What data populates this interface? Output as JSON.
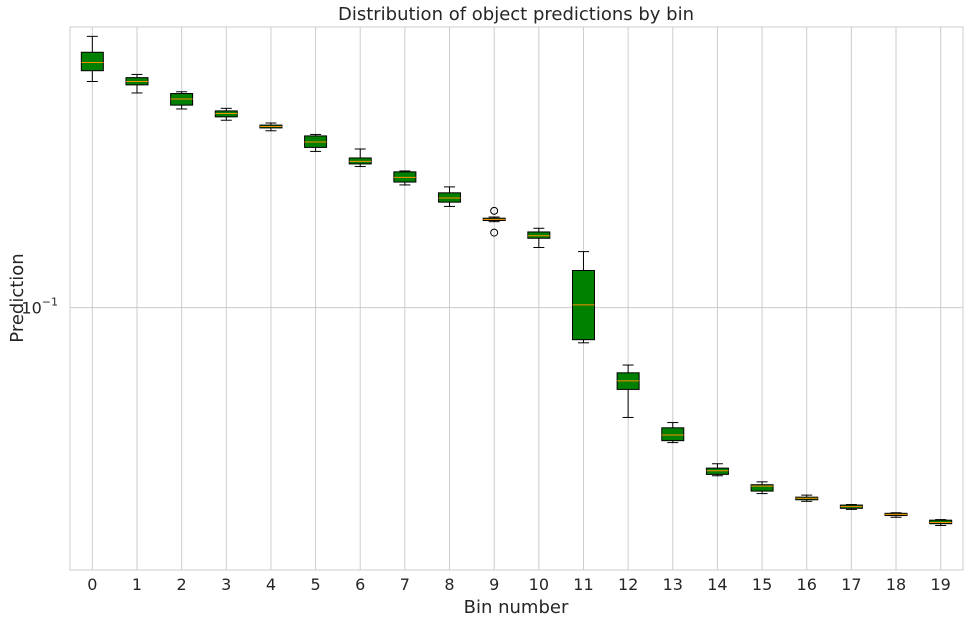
{
  "chart_data": {
    "type": "box",
    "title": "Distribution of object predictions by bin",
    "xlabel": "Bin number",
    "ylabel": "Prediction",
    "yscale": "log",
    "ylim": [
      0.0245,
      0.45
    ],
    "y_ticks": [
      {
        "value": 0.1,
        "base": "10",
        "exp": "−1"
      }
    ],
    "grid": true,
    "box_color": "#008000",
    "median_color": "#ff8c00",
    "categories": [
      "0",
      "1",
      "2",
      "3",
      "4",
      "5",
      "6",
      "7",
      "8",
      "9",
      "10",
      "11",
      "12",
      "13",
      "14",
      "15",
      "16",
      "17",
      "18",
      "19"
    ],
    "boxes": [
      {
        "label": "0",
        "whislo": 0.336,
        "q1": 0.356,
        "med": 0.372,
        "q3": 0.393,
        "whishi": 0.428,
        "fliers": []
      },
      {
        "label": "1",
        "whislo": 0.316,
        "q1": 0.33,
        "med": 0.336,
        "q3": 0.343,
        "whishi": 0.349,
        "fliers": []
      },
      {
        "label": "2",
        "whislo": 0.29,
        "q1": 0.296,
        "med": 0.306,
        "q3": 0.315,
        "whishi": 0.318,
        "fliers": []
      },
      {
        "label": "3",
        "whislo": 0.273,
        "q1": 0.278,
        "med": 0.283,
        "q3": 0.287,
        "whishi": 0.291,
        "fliers": []
      },
      {
        "label": "4",
        "whislo": 0.258,
        "q1": 0.262,
        "med": 0.264,
        "q3": 0.266,
        "whishi": 0.269,
        "fliers": []
      },
      {
        "label": "5",
        "whislo": 0.231,
        "q1": 0.236,
        "med": 0.243,
        "q3": 0.251,
        "whishi": 0.253,
        "fliers": []
      },
      {
        "label": "6",
        "whislo": 0.213,
        "q1": 0.216,
        "med": 0.219,
        "q3": 0.223,
        "whishi": 0.234,
        "fliers": []
      },
      {
        "label": "7",
        "whislo": 0.193,
        "q1": 0.196,
        "med": 0.201,
        "q3": 0.207,
        "whishi": 0.208,
        "fliers": []
      },
      {
        "label": "8",
        "whislo": 0.172,
        "q1": 0.176,
        "med": 0.18,
        "q3": 0.185,
        "whishi": 0.191,
        "fliers": []
      },
      {
        "label": "9",
        "whislo": 0.1585,
        "q1": 0.1595,
        "med": 0.1605,
        "q3": 0.1615,
        "whishi": 0.1625,
        "fliers": [
          0.168,
          0.1495
        ]
      },
      {
        "label": "10",
        "whislo": 0.138,
        "q1": 0.145,
        "med": 0.147,
        "q3": 0.15,
        "whishi": 0.153,
        "fliers": []
      },
      {
        "label": "11",
        "whislo": 0.0828,
        "q1": 0.0842,
        "med": 0.1015,
        "q3": 0.122,
        "whishi": 0.135,
        "fliers": []
      },
      {
        "label": "12",
        "whislo": 0.0555,
        "q1": 0.0645,
        "med": 0.0675,
        "q3": 0.0705,
        "whishi": 0.0735,
        "fliers": []
      },
      {
        "label": "13",
        "whislo": 0.0485,
        "q1": 0.049,
        "med": 0.0505,
        "q3": 0.0525,
        "whishi": 0.054,
        "fliers": []
      },
      {
        "label": "14",
        "whislo": 0.0406,
        "q1": 0.0409,
        "med": 0.0417,
        "q3": 0.0423,
        "whishi": 0.0433,
        "fliers": []
      },
      {
        "label": "15",
        "whislo": 0.0369,
        "q1": 0.0374,
        "med": 0.0384,
        "q3": 0.0387,
        "whishi": 0.0393,
        "fliers": []
      },
      {
        "label": "16",
        "whislo": 0.0354,
        "q1": 0.0357,
        "med": 0.036,
        "q3": 0.0362,
        "whishi": 0.0366,
        "fliers": []
      },
      {
        "label": "17",
        "whislo": 0.0339,
        "q1": 0.0341,
        "med": 0.0344,
        "q3": 0.0347,
        "whishi": 0.0348,
        "fliers": []
      },
      {
        "label": "18",
        "whislo": 0.0325,
        "q1": 0.0328,
        "med": 0.033,
        "q3": 0.0332,
        "whishi": 0.0333,
        "fliers": []
      },
      {
        "label": "19",
        "whislo": 0.0311,
        "q1": 0.0314,
        "med": 0.0316,
        "q3": 0.032,
        "whishi": 0.0321,
        "fliers": []
      }
    ]
  }
}
